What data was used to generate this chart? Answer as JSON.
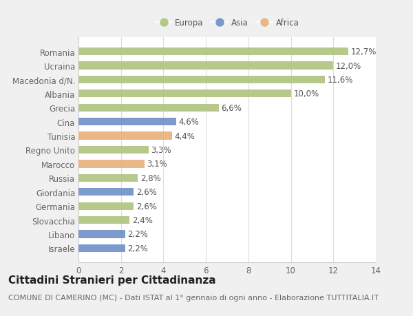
{
  "categories": [
    "Israele",
    "Libano",
    "Slovacchia",
    "Germania",
    "Giordania",
    "Russia",
    "Marocco",
    "Regno Unito",
    "Tunisia",
    "Cina",
    "Grecia",
    "Albania",
    "Macedonia d/N.",
    "Ucraina",
    "Romania"
  ],
  "values": [
    2.2,
    2.2,
    2.4,
    2.6,
    2.6,
    2.8,
    3.1,
    3.3,
    4.4,
    4.6,
    6.6,
    10.0,
    11.6,
    12.0,
    12.7
  ],
  "continents": [
    "Asia",
    "Asia",
    "Europa",
    "Europa",
    "Asia",
    "Europa",
    "Africa",
    "Europa",
    "Africa",
    "Asia",
    "Europa",
    "Europa",
    "Europa",
    "Europa",
    "Europa"
  ],
  "colors": {
    "Europa": "#afc47d",
    "Asia": "#6e8fc9",
    "Africa": "#e8b07a"
  },
  "legend_labels": [
    "Europa",
    "Asia",
    "Africa"
  ],
  "title": "Cittadini Stranieri per Cittadinanza",
  "subtitle": "COMUNE DI CAMERINO (MC) - Dati ISTAT al 1° gennaio di ogni anno - Elaborazione TUTTITALIA.IT",
  "xlim": [
    0,
    14
  ],
  "xticks": [
    0,
    2,
    4,
    6,
    8,
    10,
    12,
    14
  ],
  "plot_bg": "#ffffff",
  "fig_bg": "#f0f0f0",
  "bar_height": 0.55,
  "title_fontsize": 11,
  "subtitle_fontsize": 8,
  "label_fontsize": 8.5,
  "tick_fontsize": 8.5,
  "value_color": "#555555",
  "tick_color": "#666666"
}
